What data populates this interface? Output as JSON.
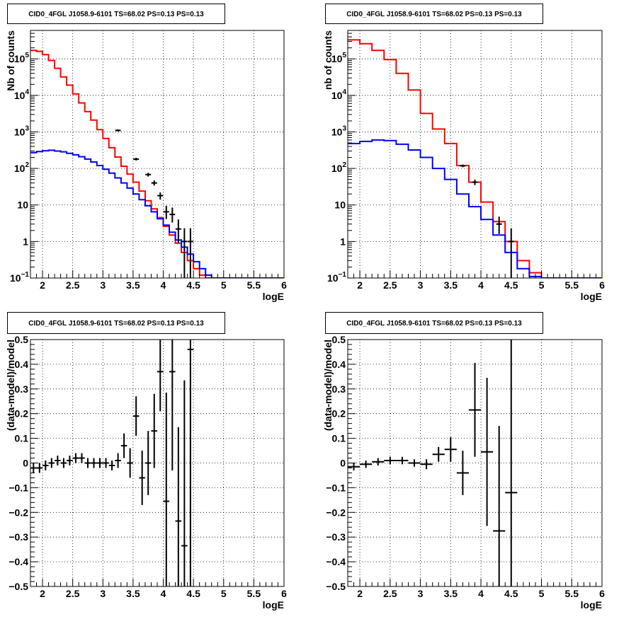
{
  "chart_data": [
    {
      "id": "top-left",
      "type": "histogram",
      "title": "CID0_4FGL J1058.9-6101 TS=68.02 PS=0.13 PS=0.13",
      "xlabel": "logE",
      "ylabel": "Nb of counts",
      "xlim": [
        1.8,
        6
      ],
      "ylim": [
        0.1,
        600000
      ],
      "yscale": "log",
      "grid": true,
      "xticks": [
        2,
        2.5,
        3,
        3.5,
        4,
        4.5,
        5,
        5.5,
        6
      ],
      "yticks": [
        {
          "v": 0.1,
          "base": "10",
          "exp": "−1"
        },
        {
          "v": 1,
          "label": "1"
        },
        {
          "v": 10,
          "label": "10"
        },
        {
          "v": 100,
          "base": "10",
          "exp": "2"
        },
        {
          "v": 1000,
          "base": "10",
          "exp": "3"
        },
        {
          "v": 10000,
          "base": "10",
          "exp": "4"
        },
        {
          "v": 100000,
          "base": "10",
          "exp": "5"
        }
      ],
      "bin_edges": [
        1.8,
        1.9,
        2.0,
        2.1,
        2.2,
        2.3,
        2.4,
        2.5,
        2.6,
        2.7,
        2.8,
        2.9,
        3.0,
        3.1,
        3.2,
        3.3,
        3.4,
        3.5,
        3.6,
        3.7,
        3.8,
        3.9,
        4.0,
        4.1,
        4.2,
        4.3,
        4.4,
        4.5,
        4.6,
        4.7,
        4.8,
        4.9,
        5.0,
        5.1,
        5.2,
        5.3,
        5.4,
        5.5,
        5.6,
        5.7,
        5.8,
        5.9,
        6.0
      ],
      "series": [
        {
          "name": "",
          "color": "#ff0000",
          "values": [
            170000,
            160000,
            130000,
            90000,
            55000,
            32000,
            19000,
            11000,
            6200,
            3600,
            2100,
            1150,
            660,
            370,
            205,
            115,
            70,
            42,
            24,
            13,
            7.8,
            4.5,
            2.6,
            1.5,
            0.9,
            0.5,
            0.3,
            0.18,
            0.12,
            0.1,
            0.1,
            0.1,
            0.1,
            0.1,
            0.1,
            0.1,
            0.1,
            0.1,
            0.1,
            0.1,
            0.1,
            0.1
          ]
        },
        {
          "name": "",
          "color": "#0000ff",
          "values": [
            270,
            290,
            305,
            315,
            300,
            285,
            260,
            235,
            210,
            180,
            150,
            120,
            95,
            74,
            55,
            40,
            29,
            20,
            14,
            9.5,
            6.5,
            4.2,
            2.8,
            1.8,
            1.1,
            0.7,
            0.45,
            0.28,
            0.18,
            0.12,
            0.1,
            0.1,
            0.1,
            0.1,
            0.1,
            0.1,
            0.1,
            0.1,
            0.1,
            0.1,
            0.1,
            0.1
          ]
        }
      ],
      "data_points": [
        {
          "x": 3.25,
          "y": 1100,
          "lo": 1030,
          "hi": 1170
        },
        {
          "x": 3.55,
          "y": 180,
          "lo": 165,
          "hi": 195
        },
        {
          "x": 3.75,
          "y": 68,
          "lo": 60,
          "hi": 76
        },
        {
          "x": 3.85,
          "y": 40,
          "lo": 34,
          "hi": 47
        },
        {
          "x": 3.95,
          "y": 18,
          "lo": 14,
          "hi": 22
        },
        {
          "x": 4.05,
          "y": 6.5,
          "lo": 4.1,
          "hi": 9.5
        },
        {
          "x": 4.15,
          "y": 5.5,
          "lo": 3.3,
          "hi": 8.5
        },
        {
          "x": 4.25,
          "y": 2.2,
          "lo": 0.9,
          "hi": 4.0
        },
        {
          "x": 4.35,
          "y": 1.0,
          "lo": 0.1,
          "hi": 2.3
        },
        {
          "x": 4.45,
          "y": 1.0,
          "lo": 0.1,
          "hi": 2.3
        }
      ]
    },
    {
      "id": "top-right",
      "type": "histogram",
      "title": "CID0_4FGL J1058.9-6101 TS=68.02 PS=0.13 PS=0.13",
      "xlabel": "logE",
      "ylabel": "nb of counts",
      "xlim": [
        1.8,
        6
      ],
      "ylim": [
        0.1,
        600000
      ],
      "yscale": "log",
      "grid": true,
      "xticks": [
        2,
        2.5,
        3,
        3.5,
        4,
        4.5,
        5,
        5.5,
        6
      ],
      "yticks": [
        {
          "v": 0.1,
          "base": "10",
          "exp": "−1"
        },
        {
          "v": 1,
          "label": "1"
        },
        {
          "v": 10,
          "label": "10"
        },
        {
          "v": 100,
          "base": "10",
          "exp": "2"
        },
        {
          "v": 1000,
          "base": "10",
          "exp": "3"
        },
        {
          "v": 10000,
          "base": "10",
          "exp": "4"
        },
        {
          "v": 100000,
          "base": "10",
          "exp": "5"
        }
      ],
      "bin_edges": [
        1.8,
        2.0,
        2.2,
        2.4,
        2.6,
        2.8,
        3.0,
        3.2,
        3.4,
        3.6,
        3.8,
        4.0,
        4.2,
        4.4,
        4.6,
        4.8,
        5.0,
        5.2,
        5.4,
        5.6,
        5.8,
        6.0
      ],
      "series": [
        {
          "name": "",
          "color": "#ff0000",
          "values": [
            330000,
            260000,
            170000,
            95000,
            40000,
            14000,
            3200,
            1200,
            480,
            120,
            42,
            12,
            3.5,
            1.0,
            0.3,
            0.14,
            0.1,
            0.1,
            0.1,
            0.1,
            0.1
          ]
        },
        {
          "name": "",
          "color": "#0000ff",
          "values": [
            480,
            550,
            600,
            580,
            460,
            320,
            200,
            100,
            50,
            20,
            9,
            4,
            1.5,
            0.5,
            0.18,
            0.11,
            0.1,
            0.1,
            0.1,
            0.1,
            0.1
          ]
        }
      ],
      "data_points": [
        {
          "x": 3.7,
          "y": 118,
          "lo": 108,
          "hi": 128
        },
        {
          "x": 3.9,
          "y": 42,
          "lo": 35,
          "hi": 49
        },
        {
          "x": 4.3,
          "y": 3.0,
          "lo": 1.6,
          "hi": 4.8
        },
        {
          "x": 4.5,
          "y": 1.0,
          "lo": 0.1,
          "hi": 2.3
        }
      ]
    },
    {
      "id": "bottom-left",
      "type": "scatter",
      "title": "CID0_4FGL J1058.9-6101 TS=68.02 PS=0.13 PS=0.13",
      "xlabel": "logE",
      "ylabel": "(data-model)/model",
      "xlim": [
        1.8,
        6
      ],
      "ylim": [
        -0.5,
        0.5
      ],
      "yscale": "linear",
      "grid": true,
      "xticks": [
        2,
        2.5,
        3,
        3.5,
        4,
        4.5,
        5,
        5.5,
        6
      ],
      "yticks": [
        {
          "v": -0.5,
          "label": "−0.5"
        },
        {
          "v": -0.4,
          "label": "−0.4"
        },
        {
          "v": -0.3,
          "label": "−0.3"
        },
        {
          "v": -0.2,
          "label": "−0.2"
        },
        {
          "v": -0.1,
          "label": "−0.1"
        },
        {
          "v": 0,
          "label": "0"
        },
        {
          "v": 0.1,
          "label": "0.1"
        },
        {
          "v": 0.2,
          "label": "0.2"
        },
        {
          "v": 0.3,
          "label": "0.3"
        },
        {
          "v": 0.4,
          "label": "0.4"
        },
        {
          "v": 0.5,
          "label": "0.5"
        }
      ],
      "xhalf": 0.05,
      "points": [
        {
          "x": 1.85,
          "y": -0.02,
          "err": 0.02
        },
        {
          "x": 1.95,
          "y": -0.02,
          "err": 0.02
        },
        {
          "x": 2.05,
          "y": -0.01,
          "err": 0.02
        },
        {
          "x": 2.15,
          "y": 0.0,
          "err": 0.02
        },
        {
          "x": 2.25,
          "y": 0.01,
          "err": 0.02
        },
        {
          "x": 2.35,
          "y": 0.0,
          "err": 0.02
        },
        {
          "x": 2.45,
          "y": 0.01,
          "err": 0.02
        },
        {
          "x": 2.55,
          "y": 0.02,
          "err": 0.02
        },
        {
          "x": 2.65,
          "y": 0.02,
          "err": 0.02
        },
        {
          "x": 2.75,
          "y": 0.0,
          "err": 0.02
        },
        {
          "x": 2.85,
          "y": 0.0,
          "err": 0.02
        },
        {
          "x": 2.95,
          "y": 0.0,
          "err": 0.02
        },
        {
          "x": 3.05,
          "y": 0.0,
          "err": 0.02
        },
        {
          "x": 3.15,
          "y": -0.01,
          "err": 0.02
        },
        {
          "x": 3.25,
          "y": 0.01,
          "err": 0.03
        },
        {
          "x": 3.35,
          "y": 0.07,
          "err": 0.05
        },
        {
          "x": 3.45,
          "y": 0.0,
          "err": 0.06
        },
        {
          "x": 3.55,
          "y": 0.19,
          "err": 0.08
        },
        {
          "x": 3.65,
          "y": -0.06,
          "err": 0.11
        },
        {
          "x": 3.75,
          "y": 0.0,
          "err": 0.13
        },
        {
          "x": 3.85,
          "y": 0.13,
          "err": 0.15
        },
        {
          "x": 3.95,
          "y": 0.37,
          "err": 0.16
        },
        {
          "x": 4.05,
          "y": -0.155,
          "err": 0.44
        },
        {
          "x": 4.15,
          "y": 0.37,
          "err": 0.4
        },
        {
          "x": 4.25,
          "y": -0.235,
          "err": 0.38
        },
        {
          "x": 4.35,
          "y": -0.335,
          "err": 0.67
        },
        {
          "x": 4.45,
          "y": 0.46,
          "err": 1.0
        }
      ]
    },
    {
      "id": "bottom-right",
      "type": "scatter",
      "title": "CID0_4FGL J1058.9-6101 TS=68.02 PS=0.13 PS=0.13",
      "xlabel": "logE",
      "ylabel": "(data-model)/model",
      "xlim": [
        1.8,
        6
      ],
      "ylim": [
        -0.5,
        0.5
      ],
      "yscale": "linear",
      "grid": true,
      "xticks": [
        2,
        2.5,
        3,
        3.5,
        4,
        4.5,
        5,
        5.5,
        6
      ],
      "yticks": [
        {
          "v": -0.5,
          "label": "−0.5"
        },
        {
          "v": -0.4,
          "label": "−0.4"
        },
        {
          "v": -0.3,
          "label": "−0.3"
        },
        {
          "v": -0.2,
          "label": "−0.2"
        },
        {
          "v": -0.1,
          "label": "−0.1"
        },
        {
          "v": 0,
          "label": "0"
        },
        {
          "v": 0.1,
          "label": "0.1"
        },
        {
          "v": 0.2,
          "label": "0.2"
        },
        {
          "v": 0.3,
          "label": "0.3"
        },
        {
          "v": 0.4,
          "label": "0.4"
        },
        {
          "v": 0.5,
          "label": "0.5"
        }
      ],
      "xhalf": 0.1,
      "points": [
        {
          "x": 1.9,
          "y": -0.015,
          "err": 0.015
        },
        {
          "x": 2.1,
          "y": -0.005,
          "err": 0.015
        },
        {
          "x": 2.3,
          "y": 0.005,
          "err": 0.015
        },
        {
          "x": 2.5,
          "y": 0.01,
          "err": 0.015
        },
        {
          "x": 2.7,
          "y": 0.01,
          "err": 0.015
        },
        {
          "x": 2.9,
          "y": 0.0,
          "err": 0.015
        },
        {
          "x": 3.1,
          "y": -0.005,
          "err": 0.02
        },
        {
          "x": 3.3,
          "y": 0.035,
          "err": 0.03
        },
        {
          "x": 3.5,
          "y": 0.055,
          "err": 0.05
        },
        {
          "x": 3.7,
          "y": -0.04,
          "err": 0.09
        },
        {
          "x": 3.9,
          "y": 0.215,
          "err": 0.19
        },
        {
          "x": 4.1,
          "y": 0.045,
          "err": 0.3
        },
        {
          "x": 4.3,
          "y": -0.275,
          "err": 0.425
        },
        {
          "x": 4.5,
          "y": -0.12,
          "err": 0.7
        }
      ]
    }
  ]
}
